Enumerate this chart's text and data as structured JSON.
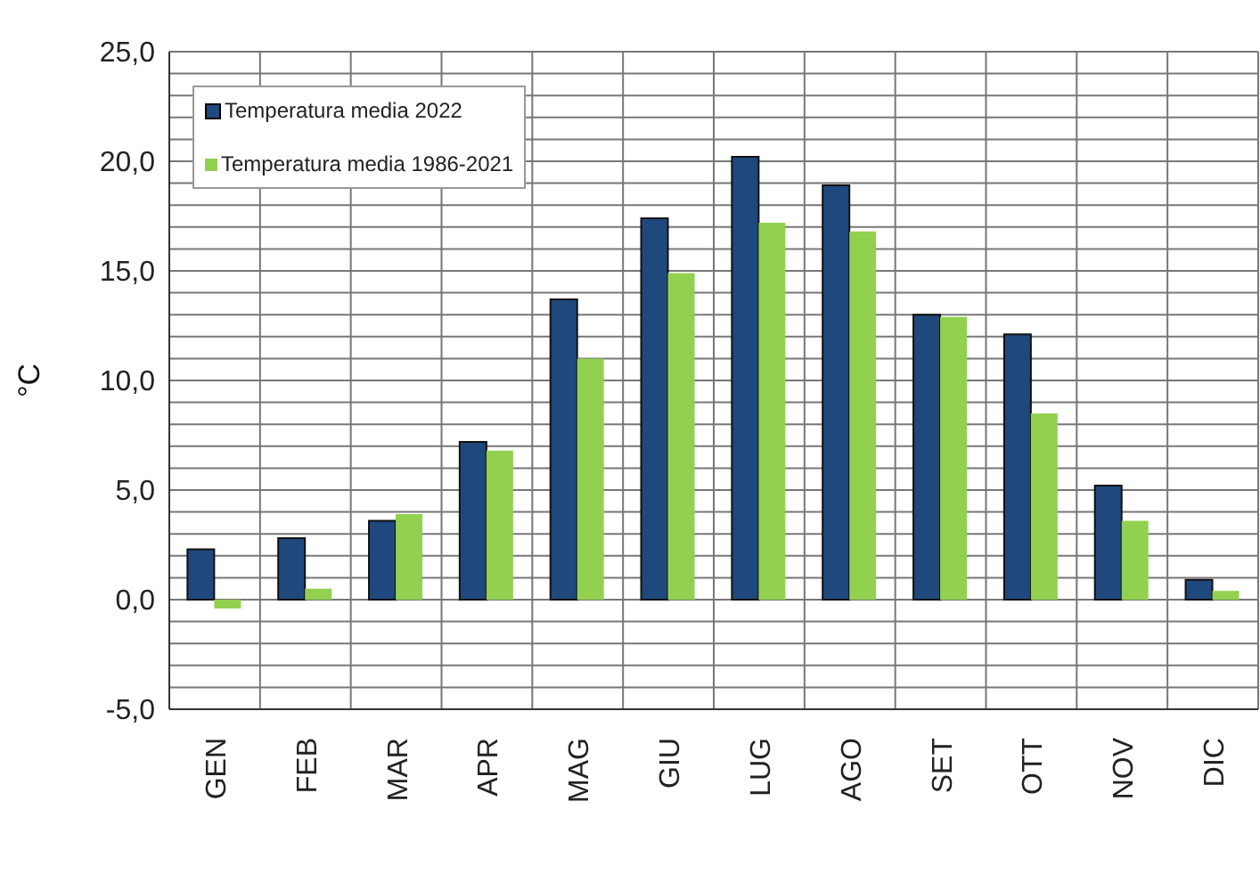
{
  "chart_data": {
    "type": "bar",
    "ylabel": "°C",
    "categories": [
      "GEN",
      "FEB",
      "MAR",
      "APR",
      "MAG",
      "GIU",
      "LUG",
      "AGO",
      "SET",
      "OTT",
      "NOV",
      "DIC"
    ],
    "series": [
      {
        "name": "Temperatura media 2022",
        "color": "#1f497d",
        "values": [
          2.3,
          2.8,
          3.6,
          7.2,
          13.7,
          17.4,
          20.2,
          18.9,
          13.0,
          12.1,
          5.2,
          0.9
        ]
      },
      {
        "name": "Temperatura media 1986-2021",
        "color": "#92d050",
        "values": [
          -0.4,
          0.5,
          3.9,
          6.8,
          11.0,
          14.9,
          17.2,
          16.8,
          12.9,
          8.5,
          3.6,
          0.4
        ]
      }
    ],
    "ylim": [
      -5,
      25
    ],
    "yticks": [
      {
        "value": -5,
        "label": "-5,0"
      },
      {
        "value": -4,
        "label": null
      },
      {
        "value": -3,
        "label": null
      },
      {
        "value": -2,
        "label": null
      },
      {
        "value": -1,
        "label": null
      },
      {
        "value": 0,
        "label": "0,0"
      },
      {
        "value": 1,
        "label": null
      },
      {
        "value": 2,
        "label": null
      },
      {
        "value": 3,
        "label": null
      },
      {
        "value": 4,
        "label": null
      },
      {
        "value": 5,
        "label": "5,0"
      },
      {
        "value": 6,
        "label": null
      },
      {
        "value": 7,
        "label": null
      },
      {
        "value": 8,
        "label": null
      },
      {
        "value": 9,
        "label": null
      },
      {
        "value": 10,
        "label": "10,0"
      },
      {
        "value": 11,
        "label": null
      },
      {
        "value": 12,
        "label": null
      },
      {
        "value": 13,
        "label": null
      },
      {
        "value": 14,
        "label": null
      },
      {
        "value": 15,
        "label": "15,0"
      },
      {
        "value": 16,
        "label": null
      },
      {
        "value": 17,
        "label": null
      },
      {
        "value": 18,
        "label": null
      },
      {
        "value": 19,
        "label": null
      },
      {
        "value": 20,
        "label": "20,0"
      },
      {
        "value": 21,
        "label": null
      },
      {
        "value": 22,
        "label": null
      },
      {
        "value": 23,
        "label": null
      },
      {
        "value": 24,
        "label": null
      },
      {
        "value": 25,
        "label": "25,0"
      }
    ],
    "grid": true,
    "legend": "top left"
  }
}
